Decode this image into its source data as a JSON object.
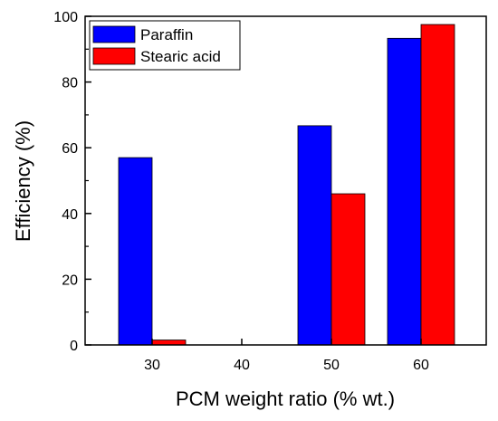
{
  "chart_data": {
    "type": "bar",
    "title": "",
    "xlabel": "PCM weight ratio (% wt.)",
    "ylabel": "Efficiency (%)",
    "categories": [
      "30",
      "40",
      "50",
      "60"
    ],
    "series": [
      {
        "name": "Paraffin",
        "values": [
          57,
          0,
          66.7,
          93.3
        ],
        "color": "#0000FF"
      },
      {
        "name": "Stearic acid",
        "values": [
          1.5,
          0,
          46,
          97.5
        ],
        "color": "#FF0000"
      }
    ],
    "ylim": [
      0,
      100
    ],
    "yticks": [
      0,
      20,
      40,
      60,
      80,
      100
    ],
    "grid": false,
    "legend_position": "top-left"
  }
}
